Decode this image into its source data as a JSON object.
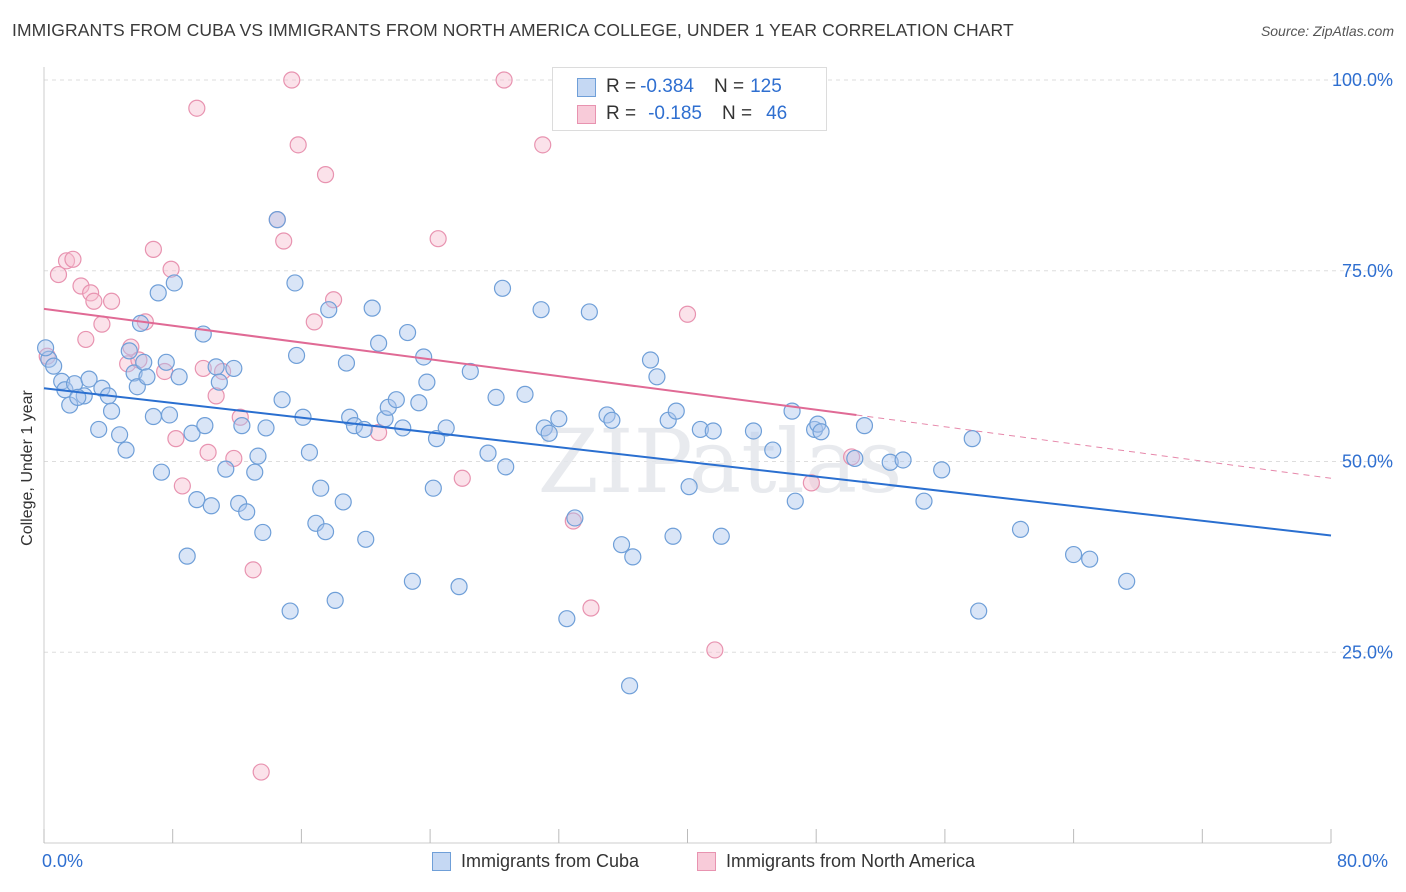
{
  "header": {
    "title": "IMMIGRANTS FROM CUBA VS IMMIGRANTS FROM NORTH AMERICA COLLEGE, UNDER 1 YEAR CORRELATION CHART",
    "source": "Source: ZipAtlas.com"
  },
  "watermark": "ZIPatlas",
  "legend_top": {
    "rows": [
      {
        "r_label": "R = ",
        "r_value": "-0.384",
        "n_label": "N = ",
        "n_value": "125"
      },
      {
        "r_label": "R = ",
        "r_value": "-0.185",
        "n_label": "N = ",
        "n_value": "46"
      }
    ]
  },
  "legend_bottom": {
    "items": [
      "Immigrants from Cuba",
      "Immigrants from North America"
    ]
  },
  "colors": {
    "blue_fill": "#aac6ee",
    "blue_stroke": "#6f9fd8",
    "blue_line": "#2a6fd0",
    "pink_fill": "#f6bfd0",
    "pink_stroke": "#e893b0",
    "pink_line": "#e06a95",
    "axis_text": "#2f6fd0",
    "grid": "#dddddd"
  },
  "chart_data": {
    "type": "scatter",
    "title": "IMMIGRANTS FROM CUBA VS IMMIGRANTS FROM NORTH AMERICA COLLEGE, UNDER 1 YEAR CORRELATION CHART",
    "xlabel": "",
    "ylabel": "College, Under 1 year",
    "xlim": [
      0,
      80
    ],
    "ylim": [
      0,
      100
    ],
    "x_tick_labels": [
      "0.0%",
      "80.0%"
    ],
    "y_tick_labels": [
      "25.0%",
      "50.0%",
      "75.0%",
      "100.0%"
    ],
    "y_ticks": [
      25,
      50,
      75,
      100
    ],
    "grid": true,
    "legend_position": "bottom-center",
    "series": [
      {
        "name": "Immigrants from Cuba",
        "color": "#6f9fd8",
        "trend": {
          "x": [
            0,
            80
          ],
          "y": [
            59.6,
            40.3
          ]
        },
        "points": [
          [
            0.3,
            63.4
          ],
          [
            0.6,
            62.5
          ],
          [
            1.1,
            60.5
          ],
          [
            1.3,
            59.4
          ],
          [
            1.6,
            57.4
          ],
          [
            1.9,
            60.2
          ],
          [
            2.5,
            58.6
          ],
          [
            2.8,
            60.8
          ],
          [
            3.4,
            54.2
          ],
          [
            3.6,
            59.6
          ],
          [
            4.0,
            58.6
          ],
          [
            4.2,
            56.6
          ],
          [
            4.7,
            53.5
          ],
          [
            5.1,
            51.5
          ],
          [
            5.3,
            64.5
          ],
          [
            5.6,
            61.6
          ],
          [
            5.8,
            59.8
          ],
          [
            6.2,
            63.0
          ],
          [
            6.4,
            61.1
          ],
          [
            6.8,
            55.9
          ],
          [
            7.1,
            72.1
          ],
          [
            7.3,
            48.6
          ],
          [
            7.6,
            63.0
          ],
          [
            7.8,
            56.1
          ],
          [
            8.1,
            73.4
          ],
          [
            8.4,
            61.1
          ],
          [
            8.9,
            37.6
          ],
          [
            9.2,
            53.7
          ],
          [
            9.5,
            45.0
          ],
          [
            9.9,
            66.7
          ],
          [
            10.0,
            54.7
          ],
          [
            10.4,
            44.2
          ],
          [
            10.7,
            62.4
          ],
          [
            10.9,
            60.4
          ],
          [
            11.3,
            49.0
          ],
          [
            11.8,
            62.2
          ],
          [
            12.1,
            44.5
          ],
          [
            12.3,
            54.7
          ],
          [
            12.6,
            43.4
          ],
          [
            13.1,
            48.6
          ],
          [
            13.3,
            50.7
          ],
          [
            13.6,
            40.7
          ],
          [
            13.8,
            54.4
          ],
          [
            14.8,
            58.1
          ],
          [
            15.3,
            30.4
          ],
          [
            15.6,
            73.4
          ],
          [
            15.7,
            63.9
          ],
          [
            16.1,
            55.8
          ],
          [
            16.5,
            51.2
          ],
          [
            16.9,
            41.9
          ],
          [
            17.2,
            46.5
          ],
          [
            17.5,
            40.8
          ],
          [
            17.7,
            69.9
          ],
          [
            18.1,
            31.8
          ],
          [
            18.6,
            44.7
          ],
          [
            18.8,
            62.9
          ],
          [
            19.0,
            55.8
          ],
          [
            19.3,
            54.7
          ],
          [
            19.9,
            54.2
          ],
          [
            20.0,
            39.8
          ],
          [
            20.4,
            70.1
          ],
          [
            20.8,
            65.5
          ],
          [
            21.2,
            55.6
          ],
          [
            21.4,
            57.1
          ],
          [
            21.9,
            58.1
          ],
          [
            22.3,
            54.4
          ],
          [
            22.6,
            66.9
          ],
          [
            22.9,
            34.3
          ],
          [
            23.3,
            57.7
          ],
          [
            23.6,
            63.7
          ],
          [
            23.8,
            60.4
          ],
          [
            24.2,
            46.5
          ],
          [
            24.4,
            53.0
          ],
          [
            25.0,
            54.4
          ],
          [
            25.8,
            33.6
          ],
          [
            26.5,
            61.8
          ],
          [
            27.6,
            51.1
          ],
          [
            28.1,
            58.4
          ],
          [
            28.5,
            72.7
          ],
          [
            28.7,
            49.3
          ],
          [
            29.9,
            58.8
          ],
          [
            30.9,
            69.9
          ],
          [
            31.1,
            54.4
          ],
          [
            31.4,
            53.7
          ],
          [
            32.0,
            55.6
          ],
          [
            32.5,
            29.4
          ],
          [
            33.0,
            42.6
          ],
          [
            33.9,
            69.6
          ],
          [
            35.0,
            56.1
          ],
          [
            35.3,
            55.4
          ],
          [
            35.9,
            39.1
          ],
          [
            36.4,
            20.6
          ],
          [
            36.6,
            37.5
          ],
          [
            37.7,
            63.3
          ],
          [
            38.1,
            61.1
          ],
          [
            38.8,
            55.4
          ],
          [
            39.1,
            40.2
          ],
          [
            39.3,
            56.6
          ],
          [
            40.1,
            46.7
          ],
          [
            40.8,
            54.2
          ],
          [
            41.6,
            54.0
          ],
          [
            42.1,
            40.2
          ],
          [
            44.1,
            54.0
          ],
          [
            45.3,
            51.5
          ],
          [
            46.5,
            56.6
          ],
          [
            46.7,
            44.8
          ],
          [
            47.9,
            54.2
          ],
          [
            48.1,
            54.9
          ],
          [
            48.3,
            53.9
          ],
          [
            50.4,
            50.4
          ],
          [
            51.0,
            54.7
          ],
          [
            52.6,
            49.9
          ],
          [
            53.4,
            50.2
          ],
          [
            54.7,
            44.8
          ],
          [
            55.8,
            48.9
          ],
          [
            57.7,
            53.0
          ],
          [
            58.1,
            30.4
          ],
          [
            60.7,
            41.1
          ],
          [
            64.0,
            37.8
          ],
          [
            65.0,
            37.2
          ],
          [
            67.3,
            34.3
          ],
          [
            0.1,
            64.9
          ],
          [
            2.1,
            58.4
          ],
          [
            6.0,
            68.1
          ],
          [
            14.5,
            81.7
          ]
        ]
      },
      {
        "name": "Immigrants from North America",
        "color": "#e893b0",
        "trend": {
          "x": [
            0,
            50.5
          ],
          "y": [
            70.0,
            56.1
          ]
        },
        "trend_dashed": {
          "x": [
            50.5,
            80
          ],
          "y": [
            56.1,
            47.8
          ]
        },
        "points": [
          [
            0.2,
            63.8
          ],
          [
            0.9,
            74.5
          ],
          [
            1.4,
            76.3
          ],
          [
            1.8,
            76.5
          ],
          [
            2.3,
            73.0
          ],
          [
            2.9,
            72.1
          ],
          [
            3.1,
            71.0
          ],
          [
            3.6,
            68.0
          ],
          [
            4.2,
            71.0
          ],
          [
            5.2,
            62.8
          ],
          [
            5.4,
            65.0
          ],
          [
            5.9,
            63.3
          ],
          [
            6.3,
            68.3
          ],
          [
            6.8,
            77.8
          ],
          [
            7.5,
            61.8
          ],
          [
            7.9,
            75.2
          ],
          [
            8.2,
            53.0
          ],
          [
            8.6,
            46.8
          ],
          [
            9.5,
            96.3
          ],
          [
            9.9,
            62.2
          ],
          [
            10.2,
            51.2
          ],
          [
            10.7,
            58.6
          ],
          [
            11.1,
            61.8
          ],
          [
            11.8,
            50.4
          ],
          [
            12.2,
            55.8
          ],
          [
            13.0,
            35.8
          ],
          [
            13.5,
            9.3
          ],
          [
            14.5,
            81.7
          ],
          [
            14.9,
            78.9
          ],
          [
            15.4,
            100.0
          ],
          [
            15.8,
            91.5
          ],
          [
            16.8,
            68.3
          ],
          [
            17.5,
            87.6
          ],
          [
            18.0,
            71.2
          ],
          [
            20.8,
            53.8
          ],
          [
            24.5,
            79.2
          ],
          [
            26.0,
            47.8
          ],
          [
            28.6,
            100.0
          ],
          [
            31.0,
            91.5
          ],
          [
            32.9,
            42.2
          ],
          [
            34.0,
            30.8
          ],
          [
            40.0,
            69.3
          ],
          [
            41.7,
            25.3
          ],
          [
            47.7,
            47.2
          ],
          [
            50.2,
            50.6
          ],
          [
            2.6,
            66.0
          ]
        ]
      }
    ]
  }
}
